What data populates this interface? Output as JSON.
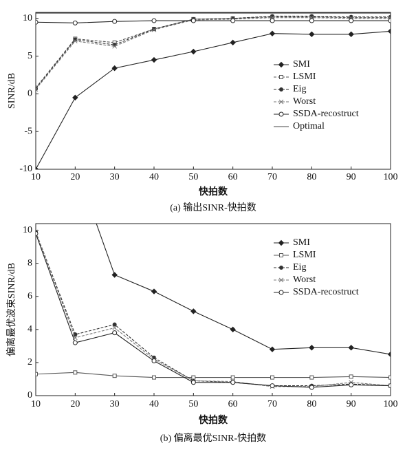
{
  "chart_data": [
    {
      "type": "line",
      "caption": "(a) 输出SINR-快拍数",
      "x_label": "快拍数",
      "y_label": "SINR/dB",
      "x": [
        10,
        20,
        30,
        40,
        50,
        60,
        70,
        80,
        90,
        100
      ],
      "xlim": [
        10,
        100
      ],
      "xticks": [
        10,
        20,
        30,
        40,
        50,
        60,
        70,
        80,
        90,
        100
      ],
      "ylim": [
        -10,
        10.8
      ],
      "yticks": [
        -10,
        -5,
        0,
        5,
        10
      ],
      "legend": "center right",
      "series": [
        {
          "name": "SMI",
          "color": "#222222",
          "marker": "diamond",
          "dash": false,
          "values": [
            -10,
            -0.5,
            3.4,
            4.5,
            5.6,
            6.8,
            8.0,
            7.9,
            7.9,
            8.3
          ]
        },
        {
          "name": "LSMI",
          "color": "#555555",
          "marker": "square",
          "dash": true,
          "values": [
            0.8,
            7.3,
            6.8,
            8.6,
            9.9,
            10.0,
            10.2,
            10.2,
            10.1,
            10.1
          ]
        },
        {
          "name": "Eig",
          "color": "#333333",
          "marker": "dot",
          "dash": true,
          "values": [
            0.7,
            7.2,
            6.5,
            8.6,
            9.9,
            10.0,
            10.3,
            10.3,
            10.2,
            10.2
          ]
        },
        {
          "name": "Worst",
          "color": "#777777",
          "marker": "cross",
          "dash": true,
          "values": [
            0.6,
            7.0,
            6.3,
            8.5,
            9.8,
            9.9,
            10.1,
            10.1,
            10.0,
            10.0
          ]
        },
        {
          "name": "SSDA-recostruct",
          "color": "#222222",
          "marker": "circle",
          "dash": false,
          "values": [
            9.5,
            9.4,
            9.6,
            9.7,
            9.7,
            9.7,
            9.7,
            9.7,
            9.7,
            9.7
          ]
        },
        {
          "name": "Optimal",
          "color": "#444444",
          "marker": "none",
          "dash": false,
          "values": [
            10.7,
            10.7,
            10.7,
            10.7,
            10.7,
            10.7,
            10.7,
            10.7,
            10.7,
            10.7
          ]
        }
      ]
    },
    {
      "type": "line",
      "caption": "(b) 偏离最优SINR-快拍数",
      "x_label": "快拍数",
      "y_label": "偏离最优波束SINR/dB",
      "x": [
        10,
        20,
        30,
        40,
        50,
        60,
        70,
        80,
        90,
        100
      ],
      "xlim": [
        10,
        100
      ],
      "xticks": [
        10,
        20,
        30,
        40,
        50,
        60,
        70,
        80,
        90,
        100
      ],
      "ylim": [
        0,
        10.4
      ],
      "yticks": [
        0,
        2,
        4,
        6,
        8,
        10
      ],
      "legend": "upper right",
      "series": [
        {
          "name": "SMI",
          "color": "#222222",
          "marker": "diamond",
          "dash": false,
          "values": [
            null,
            14,
            7.3,
            6.3,
            5.1,
            4.0,
            2.8,
            2.9,
            2.9,
            2.5
          ]
        },
        {
          "name": "LSMI",
          "color": "#555555",
          "marker": "square",
          "dash": false,
          "values": [
            1.3,
            1.4,
            1.2,
            1.1,
            1.1,
            1.1,
            1.1,
            1.1,
            1.15,
            1.1
          ]
        },
        {
          "name": "Eig",
          "color": "#333333",
          "marker": "dot",
          "dash": true,
          "values": [
            9.9,
            3.7,
            4.3,
            2.3,
            0.9,
            0.8,
            0.6,
            0.6,
            0.7,
            0.6
          ]
        },
        {
          "name": "Worst",
          "color": "#777777",
          "marker": "cross",
          "dash": true,
          "values": [
            9.9,
            3.5,
            4.1,
            2.2,
            0.9,
            0.85,
            0.55,
            0.55,
            0.8,
            0.6
          ]
        },
        {
          "name": "SSDA-recostruct",
          "color": "#222222",
          "marker": "circle",
          "dash": false,
          "values": [
            9.8,
            3.2,
            3.8,
            2.1,
            0.8,
            0.8,
            0.6,
            0.5,
            0.65,
            0.6
          ]
        }
      ]
    }
  ]
}
